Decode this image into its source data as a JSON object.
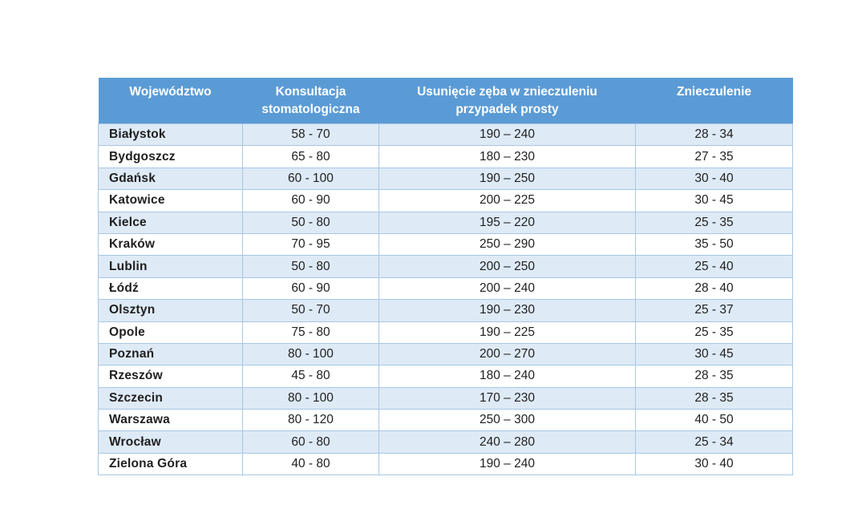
{
  "colors": {
    "header_bg": "#5B9BD5",
    "header_text": "#FFFFFF",
    "row_alt_bg": "#DEEAF6",
    "row_bg": "#FFFFFF",
    "border": "#A8C7E6",
    "text": "#1F1F1F"
  },
  "chart_data": {
    "type": "table",
    "title": "",
    "columns": [
      {
        "label": "Województwo",
        "lines": [
          "Województwo"
        ]
      },
      {
        "label": "Konsultacja stomatologiczna",
        "lines": [
          "Konsultacja",
          "stomatologiczna"
        ]
      },
      {
        "label": "Usunięcie zęba w znieczuleniu przypadek prosty",
        "lines": [
          "Usunięcie zęba w znieczuleniu",
          "przypadek prosty"
        ]
      },
      {
        "label": "Znieczulenie",
        "lines": [
          "Znieczulenie"
        ]
      }
    ],
    "rows": [
      {
        "wojewodztwo": "Białystok",
        "konsultacja": "58 - 70",
        "usuniecie": "190 – 240",
        "znieczulenie": "28 - 34"
      },
      {
        "wojewodztwo": "Bydgoszcz",
        "konsultacja": "65 - 80",
        "usuniecie": "180 – 230",
        "znieczulenie": "27 - 35"
      },
      {
        "wojewodztwo": "Gdańsk",
        "konsultacja": "60 - 100",
        "usuniecie": "190 – 250",
        "znieczulenie": "30 - 40"
      },
      {
        "wojewodztwo": "Katowice",
        "konsultacja": "60 - 90",
        "usuniecie": "200 – 225",
        "znieczulenie": "30 - 45"
      },
      {
        "wojewodztwo": "Kielce",
        "konsultacja": "50 - 80",
        "usuniecie": "195 – 220",
        "znieczulenie": "25 - 35"
      },
      {
        "wojewodztwo": "Kraków",
        "konsultacja": "70 - 95",
        "usuniecie": "250 – 290",
        "znieczulenie": "35 - 50"
      },
      {
        "wojewodztwo": "Lublin",
        "konsultacja": "50 - 80",
        "usuniecie": "200 – 250",
        "znieczulenie": "25 - 40"
      },
      {
        "wojewodztwo": "Łódź",
        "konsultacja": "60 - 90",
        "usuniecie": "200 – 240",
        "znieczulenie": "28 - 40"
      },
      {
        "wojewodztwo": "Olsztyn",
        "konsultacja": "50 - 70",
        "usuniecie": "190 – 230",
        "znieczulenie": "25 - 37"
      },
      {
        "wojewodztwo": "Opole",
        "konsultacja": "75 - 80",
        "usuniecie": "190 – 225",
        "znieczulenie": "25 - 35"
      },
      {
        "wojewodztwo": "Poznań",
        "konsultacja": "80 - 100",
        "usuniecie": "200 – 270",
        "znieczulenie": "30 - 45"
      },
      {
        "wojewodztwo": "Rzeszów",
        "konsultacja": "45 - 80",
        "usuniecie": "180 – 240",
        "znieczulenie": "28 - 35"
      },
      {
        "wojewodztwo": "Szczecin",
        "konsultacja": "80 - 100",
        "usuniecie": "170 – 230",
        "znieczulenie": "28 - 35"
      },
      {
        "wojewodztwo": "Warszawa",
        "konsultacja": "80 - 120",
        "usuniecie": "250 – 300",
        "znieczulenie": "40 - 50"
      },
      {
        "wojewodztwo": "Wrocław",
        "konsultacja": "60 - 80",
        "usuniecie": "240 – 280",
        "znieczulenie": "25 - 34"
      },
      {
        "wojewodztwo": "Zielona Góra",
        "konsultacja": "40 - 80",
        "usuniecie": "190 – 240",
        "znieczulenie": "30 - 40"
      }
    ]
  }
}
